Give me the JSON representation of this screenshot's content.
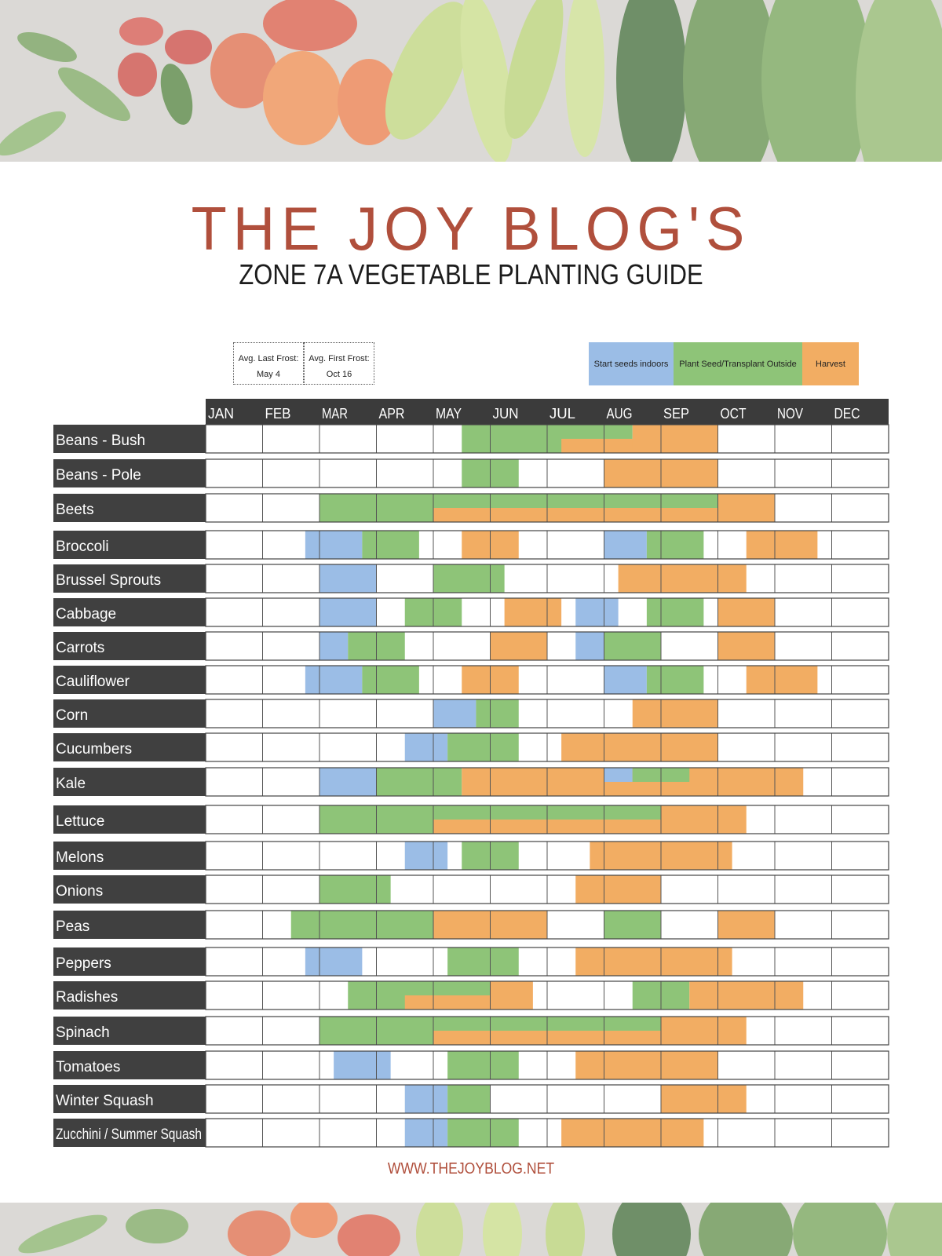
{
  "title": "THE JOY BLOG'S",
  "subtitle": "ZONE 7A VEGETABLE PLANTING GUIDE",
  "frost": {
    "last_label": "Avg. Last Frost:",
    "last_date": "May 4",
    "first_label": "Avg. First Frost:",
    "first_date": "Oct 16"
  },
  "legend": [
    {
      "label": "Start seeds indoors",
      "color": "#9bbde6"
    },
    {
      "label": "Plant Seed/Transplant Outside",
      "color": "#8ec478"
    },
    {
      "label": "Harvest",
      "color": "#f2ad63"
    }
  ],
  "footer": "WWW.THEJOYBLOG.NET",
  "colors": {
    "indoors": "#9bbde6",
    "outside": "#8ec478",
    "harvest": "#f2ad63",
    "label_bg": "#404040",
    "header_bg": "#3b3b3b"
  },
  "chart_data": {
    "type": "table",
    "months": [
      "JAN",
      "FEB",
      "MAR",
      "APR",
      "MAY",
      "JUN",
      "JUL",
      "AUG",
      "SEP",
      "OCT",
      "NOV",
      "DEC"
    ],
    "units": "month index (0 = start of JAN, 12 = end of DEC)",
    "crops": [
      {
        "name": "Beans - Bush",
        "bars": [
          {
            "kind": "outside",
            "start": 4.5,
            "end": 7.5
          },
          {
            "kind": "harvest",
            "start": 6.25,
            "end": 9.0,
            "half": "bottom"
          },
          {
            "kind": "harvest",
            "start": 7.5,
            "end": 9.0
          }
        ]
      },
      {
        "name": "Beans - Pole",
        "bars": [
          {
            "kind": "outside",
            "start": 4.5,
            "end": 5.5
          },
          {
            "kind": "harvest",
            "start": 7.0,
            "end": 9.0
          }
        ]
      },
      {
        "name": "Beets",
        "bars": [
          {
            "kind": "outside",
            "start": 2.0,
            "end": 9.0
          },
          {
            "kind": "harvest",
            "start": 4.0,
            "end": 9.0,
            "half": "bottom"
          },
          {
            "kind": "harvest",
            "start": 9.0,
            "end": 10.0
          }
        ]
      },
      {
        "name": "Broccoli",
        "bars": [
          {
            "kind": "indoors",
            "start": 1.75,
            "end": 2.75
          },
          {
            "kind": "outside",
            "start": 2.75,
            "end": 3.75
          },
          {
            "kind": "harvest",
            "start": 4.5,
            "end": 5.5
          },
          {
            "kind": "indoors",
            "start": 7.0,
            "end": 7.75
          },
          {
            "kind": "outside",
            "start": 7.75,
            "end": 8.75
          },
          {
            "kind": "harvest",
            "start": 9.5,
            "end": 10.75
          }
        ]
      },
      {
        "name": "Brussel Sprouts",
        "bars": [
          {
            "kind": "indoors",
            "start": 2.0,
            "end": 3.0
          },
          {
            "kind": "outside",
            "start": 4.0,
            "end": 5.25
          },
          {
            "kind": "harvest",
            "start": 7.25,
            "end": 9.5
          }
        ]
      },
      {
        "name": "Cabbage",
        "bars": [
          {
            "kind": "indoors",
            "start": 2.0,
            "end": 3.0
          },
          {
            "kind": "outside",
            "start": 3.5,
            "end": 4.5
          },
          {
            "kind": "harvest",
            "start": 5.25,
            "end": 6.25
          },
          {
            "kind": "indoors",
            "start": 6.5,
            "end": 7.25
          },
          {
            "kind": "outside",
            "start": 7.75,
            "end": 8.75
          },
          {
            "kind": "harvest",
            "start": 9.0,
            "end": 10.0
          }
        ]
      },
      {
        "name": "Carrots",
        "bars": [
          {
            "kind": "indoors",
            "start": 2.0,
            "end": 2.5
          },
          {
            "kind": "outside",
            "start": 2.5,
            "end": 3.5
          },
          {
            "kind": "harvest",
            "start": 5.0,
            "end": 6.0
          },
          {
            "kind": "indoors",
            "start": 6.5,
            "end": 7.0
          },
          {
            "kind": "outside",
            "start": 7.0,
            "end": 8.0
          },
          {
            "kind": "harvest",
            "start": 9.0,
            "end": 10.0
          }
        ]
      },
      {
        "name": "Cauliflower",
        "bars": [
          {
            "kind": "indoors",
            "start": 1.75,
            "end": 2.75
          },
          {
            "kind": "outside",
            "start": 2.75,
            "end": 3.75
          },
          {
            "kind": "harvest",
            "start": 4.5,
            "end": 5.5
          },
          {
            "kind": "indoors",
            "start": 7.0,
            "end": 7.75
          },
          {
            "kind": "outside",
            "start": 7.75,
            "end": 8.75
          },
          {
            "kind": "harvest",
            "start": 9.5,
            "end": 10.75
          }
        ]
      },
      {
        "name": "Corn",
        "bars": [
          {
            "kind": "indoors",
            "start": 4.0,
            "end": 4.75
          },
          {
            "kind": "outside",
            "start": 4.75,
            "end": 5.5
          },
          {
            "kind": "harvest",
            "start": 7.5,
            "end": 9.0
          }
        ]
      },
      {
        "name": "Cucumbers",
        "bars": [
          {
            "kind": "indoors",
            "start": 3.5,
            "end": 4.25
          },
          {
            "kind": "outside",
            "start": 4.25,
            "end": 5.5
          },
          {
            "kind": "harvest",
            "start": 6.25,
            "end": 9.0
          }
        ]
      },
      {
        "name": "Kale",
        "bars": [
          {
            "kind": "indoors",
            "start": 2.0,
            "end": 3.0
          },
          {
            "kind": "outside",
            "start": 3.0,
            "end": 4.5
          },
          {
            "kind": "harvest",
            "start": 4.5,
            "end": 10.5
          },
          {
            "kind": "indoors",
            "start": 7.0,
            "end": 7.5,
            "half": "top"
          },
          {
            "kind": "outside",
            "start": 7.5,
            "end": 8.5,
            "half": "top"
          }
        ]
      },
      {
        "name": "Lettuce",
        "bars": [
          {
            "kind": "outside",
            "start": 2.0,
            "end": 8.0
          },
          {
            "kind": "harvest",
            "start": 4.0,
            "end": 8.0,
            "half": "bottom"
          },
          {
            "kind": "harvest",
            "start": 8.0,
            "end": 9.5
          }
        ]
      },
      {
        "name": "Melons",
        "bars": [
          {
            "kind": "indoors",
            "start": 3.5,
            "end": 4.25
          },
          {
            "kind": "outside",
            "start": 4.5,
            "end": 5.5
          },
          {
            "kind": "harvest",
            "start": 6.75,
            "end": 9.25
          }
        ]
      },
      {
        "name": "Onions",
        "bars": [
          {
            "kind": "outside",
            "start": 2.0,
            "end": 3.25
          },
          {
            "kind": "harvest",
            "start": 6.5,
            "end": 8.0
          }
        ]
      },
      {
        "name": "Peas",
        "bars": [
          {
            "kind": "outside",
            "start": 1.5,
            "end": 4.0
          },
          {
            "kind": "harvest",
            "start": 4.0,
            "end": 6.0
          },
          {
            "kind": "outside",
            "start": 7.0,
            "end": 8.0
          },
          {
            "kind": "harvest",
            "start": 9.0,
            "end": 10.0
          }
        ]
      },
      {
        "name": "Peppers",
        "bars": [
          {
            "kind": "indoors",
            "start": 1.75,
            "end": 2.75
          },
          {
            "kind": "outside",
            "start": 4.25,
            "end": 5.5
          },
          {
            "kind": "harvest",
            "start": 6.5,
            "end": 9.25
          }
        ]
      },
      {
        "name": "Radishes",
        "bars": [
          {
            "kind": "outside",
            "start": 2.5,
            "end": 5.0
          },
          {
            "kind": "harvest",
            "start": 3.5,
            "end": 5.0,
            "half": "bottom"
          },
          {
            "kind": "harvest",
            "start": 5.0,
            "end": 5.75
          },
          {
            "kind": "outside",
            "start": 7.5,
            "end": 8.5
          },
          {
            "kind": "harvest",
            "start": 8.5,
            "end": 10.5
          }
        ]
      },
      {
        "name": "Spinach",
        "bars": [
          {
            "kind": "outside",
            "start": 2.0,
            "end": 8.0
          },
          {
            "kind": "harvest",
            "start": 4.0,
            "end": 8.0,
            "half": "bottom"
          },
          {
            "kind": "harvest",
            "start": 8.0,
            "end": 9.5
          }
        ]
      },
      {
        "name": "Tomatoes",
        "bars": [
          {
            "kind": "indoors",
            "start": 2.25,
            "end": 3.25
          },
          {
            "kind": "outside",
            "start": 4.25,
            "end": 5.5
          },
          {
            "kind": "harvest",
            "start": 6.5,
            "end": 9.0
          }
        ]
      },
      {
        "name": "Winter Squash",
        "bars": [
          {
            "kind": "indoors",
            "start": 3.5,
            "end": 4.25
          },
          {
            "kind": "outside",
            "start": 4.25,
            "end": 5.0
          },
          {
            "kind": "harvest",
            "start": 8.0,
            "end": 9.5
          }
        ]
      },
      {
        "name": "Zucchini / Summer Squash",
        "bars": [
          {
            "kind": "indoors",
            "start": 3.5,
            "end": 4.25
          },
          {
            "kind": "outside",
            "start": 4.25,
            "end": 5.5
          },
          {
            "kind": "harvest",
            "start": 6.25,
            "end": 8.75
          }
        ]
      }
    ]
  }
}
